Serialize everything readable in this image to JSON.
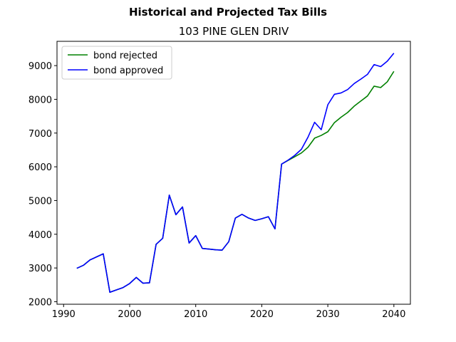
{
  "chart_data": {
    "type": "line",
    "suptitle": "Historical and Projected Tax Bills",
    "title": "103 PINE GLEN DRIV",
    "xlabel": "",
    "ylabel": "",
    "xlim": [
      1989,
      2042.5
    ],
    "ylim": [
      1925,
      9720
    ],
    "xticks": [
      1990,
      2000,
      2010,
      2020,
      2030,
      2040
    ],
    "yticks": [
      2000,
      3000,
      4000,
      5000,
      6000,
      7000,
      8000,
      9000
    ],
    "grid": false,
    "legend_position": "upper left",
    "series": [
      {
        "name": "bond rejected",
        "color": "#008000",
        "x": [
          1992,
          1993,
          1994,
          1995,
          1996,
          1997,
          1998,
          1999,
          2000,
          2001,
          2002,
          2003,
          2004,
          2005,
          2006,
          2007,
          2008,
          2009,
          2010,
          2011,
          2012,
          2013,
          2014,
          2015,
          2016,
          2017,
          2018,
          2019,
          2020,
          2021,
          2022,
          2023,
          2024,
          2025,
          2026,
          2027,
          2028,
          2029,
          2030,
          2031,
          2032,
          2033,
          2034,
          2035,
          2036,
          2037,
          2038,
          2039,
          2040
        ],
        "y": [
          2990,
          3080,
          3240,
          3330,
          3420,
          2280,
          2350,
          2420,
          2540,
          2720,
          2550,
          2560,
          3700,
          3880,
          5160,
          4580,
          4810,
          3740,
          3960,
          3580,
          3560,
          3540,
          3530,
          3780,
          4480,
          4590,
          4480,
          4410,
          4460,
          4520,
          4160,
          6080,
          6190,
          6300,
          6410,
          6580,
          6850,
          6930,
          7040,
          7310,
          7470,
          7610,
          7800,
          7950,
          8100,
          8390,
          8350,
          8520,
          8830
        ]
      },
      {
        "name": "bond approved",
        "color": "#0000ff",
        "x": [
          1992,
          1993,
          1994,
          1995,
          1996,
          1997,
          1998,
          1999,
          2000,
          2001,
          2002,
          2003,
          2004,
          2005,
          2006,
          2007,
          2008,
          2009,
          2010,
          2011,
          2012,
          2013,
          2014,
          2015,
          2016,
          2017,
          2018,
          2019,
          2020,
          2021,
          2022,
          2023,
          2024,
          2025,
          2026,
          2027,
          2028,
          2029,
          2030,
          2031,
          2032,
          2033,
          2034,
          2035,
          2036,
          2037,
          2038,
          2039,
          2040
        ],
        "y": [
          2990,
          3080,
          3240,
          3330,
          3420,
          2280,
          2350,
          2420,
          2540,
          2720,
          2550,
          2560,
          3700,
          3880,
          5160,
          4580,
          4810,
          3740,
          3960,
          3580,
          3560,
          3540,
          3530,
          3780,
          4480,
          4590,
          4480,
          4410,
          4460,
          4520,
          4160,
          6080,
          6200,
          6340,
          6520,
          6880,
          7320,
          7100,
          7840,
          8150,
          8190,
          8290,
          8470,
          8600,
          8740,
          9030,
          8970,
          9130,
          9370
        ]
      }
    ]
  }
}
